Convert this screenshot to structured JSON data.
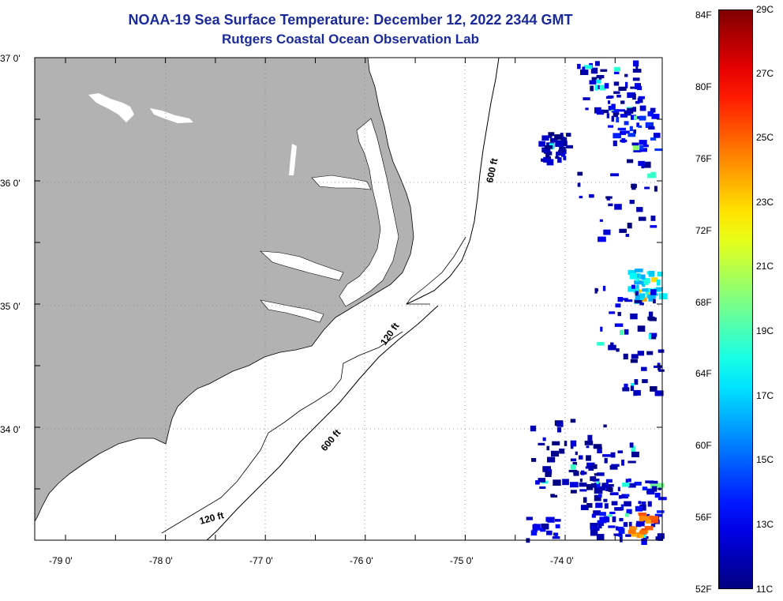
{
  "title": {
    "line1": "NOAA-19 Sea Surface Temperature:  December 12, 2022 2344 GMT",
    "line2": "Rutgers Coastal Ocean Observation Lab"
  },
  "axes": {
    "lon_ticks": [
      {
        "value": -79,
        "label": "-79 0'"
      },
      {
        "value": -78,
        "label": "-78 0'"
      },
      {
        "value": -77,
        "label": "-77 0'"
      },
      {
        "value": -76,
        "label": "-76 0'"
      },
      {
        "value": -75,
        "label": "-75 0'"
      },
      {
        "value": -74,
        "label": "-74 0'"
      }
    ],
    "lat_ticks": [
      {
        "value": 37,
        "label": "37 0'"
      },
      {
        "value": 36,
        "label": "36 0'"
      },
      {
        "value": 35,
        "label": "35 0'"
      },
      {
        "value": 34,
        "label": "34 0'"
      }
    ],
    "lon_range": [
      -79.3,
      -73.2
    ],
    "lat_range": [
      33.1,
      37.0
    ]
  },
  "contours": [
    {
      "label": "600 ft"
    },
    {
      "label": "120 ft"
    },
    {
      "label": "600 ft"
    },
    {
      "label": "120 ft"
    }
  ],
  "colorbar": {
    "fahrenheit": [
      "84F",
      "80F",
      "76F",
      "72F",
      "68F",
      "64F",
      "60F",
      "56F",
      "52F"
    ],
    "celsius": [
      "29C",
      "27C",
      "25C",
      "23C",
      "21C",
      "19C",
      "17C",
      "15C",
      "13C",
      "11C"
    ],
    "range_c": [
      11,
      29
    ]
  },
  "colors": {
    "land": "#b2b2b2",
    "ocean": "#ffffff",
    "title": "#1a2a9a"
  }
}
